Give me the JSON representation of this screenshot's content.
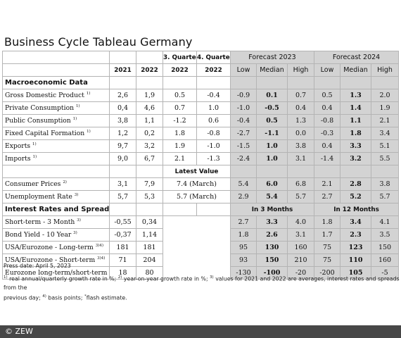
{
  "title": "Business Cycle Tableau Germany",
  "header": {
    "quarter3": "3. Quarter",
    "quarter4": "4. Quarter",
    "forecast2023": "Forecast 2023",
    "forecast2024": "Forecast 2024",
    "years": [
      "2021",
      "2022",
      "2022",
      "2022"
    ],
    "sub": [
      "Low",
      "Median",
      "High",
      "Low",
      "Median",
      "High"
    ]
  },
  "sections": {
    "macro": "Macroeconomic Data",
    "latest": "Latest Value",
    "rates": "Interest Rates and Spreads",
    "in3": "In 3 Months",
    "in12": "In 12 Months"
  },
  "macro_rows": [
    {
      "label": "Gross Domestic Product",
      "fn": "1)",
      "vals": [
        "2,6",
        "1,9",
        "0.5",
        "-0.4",
        "-0.9",
        "0.1",
        "0.7",
        "0.5",
        "1.3",
        "2.0"
      ]
    },
    {
      "label": "Private Consumption",
      "fn": "1)",
      "vals": [
        "0,4",
        "4,6",
        "0.7",
        "1.0",
        "-1.0",
        "-0.5",
        "0.4",
        "0.4",
        "1.4",
        "1.9"
      ]
    },
    {
      "label": "Public Consumption",
      "fn": "1)",
      "vals": [
        "3,8",
        "1,1",
        "-1.2",
        "0.6",
        "-0.4",
        "0.5",
        "1.3",
        "-0.8",
        "1.1",
        "2.1"
      ]
    },
    {
      "label": "Fixed Capital Formation",
      "fn": "1)",
      "vals": [
        "1,2",
        "0,2",
        "1.8",
        "-0.8",
        "-2.7",
        "-1.1",
        "0.0",
        "-0.3",
        "1.8",
        "3.4"
      ]
    },
    {
      "label": "Exports",
      "fn": "1)",
      "vals": [
        "9,7",
        "3,2",
        "1.9",
        "-1.0",
        "-1.5",
        "1.0",
        "3.8",
        "0.4",
        "3.3",
        "5.1"
      ]
    },
    {
      "label": "Imports",
      "fn": "1)",
      "vals": [
        "9,0",
        "6,7",
        "2.1",
        "-1.3",
        "-2.4",
        "1.0",
        "3.1",
        "-1.4",
        "3.2",
        "5.5"
      ]
    }
  ],
  "latest_rows": [
    {
      "label": "Consumer Prices",
      "fn": "2)",
      "v2021": "3,1",
      "v2022": "7,9",
      "latest": "7.4 (March)",
      "vals": [
        "5.4",
        "6.0",
        "6.8",
        "2.1",
        "2.8",
        "3.8"
      ]
    },
    {
      "label": "Unemployment Rate",
      "fn": "3)",
      "v2021": "5,7",
      "v2022": "5,3",
      "latest": "5.7 (March)",
      "vals": [
        "2.9",
        "5.4",
        "5.7",
        "2.7",
        "5.2",
        "5.7"
      ]
    }
  ],
  "rate_rows": [
    {
      "label": "Short-term - 3 Month",
      "fn": "3)",
      "v2021": "-0,55",
      "v2022": "0,34",
      "vals": [
        "2.7",
        "3.3",
        "4.0",
        "1.8",
        "3.4",
        "4.1"
      ]
    },
    {
      "label": "Bond Yield - 10 Year",
      "fn": "3)",
      "v2021": "-0,37",
      "v2022": "1,14",
      "vals": [
        "1.8",
        "2.6",
        "3.1",
        "1.7",
        "2.3",
        "3.5"
      ]
    },
    {
      "label": "USA/Eurozone - Long-term",
      "fn": "3)4)",
      "v2021": "181",
      "v2022": "181",
      "vals": [
        "95",
        "130",
        "160",
        "75",
        "123",
        "150"
      ]
    },
    {
      "label": "USA/Eurozone - Short-term",
      "fn": "3)4)",
      "v2021": "71",
      "v2022": "204",
      "vals": [
        "93",
        "150",
        "210",
        "75",
        "110",
        "160"
      ]
    },
    {
      "label": "Eurozone long-term/short-term",
      "fn": "3)",
      "v2021": "18",
      "v2022": "80",
      "vals": [
        "-130",
        "-100",
        "-20",
        "-200",
        "105",
        "-5"
      ]
    }
  ],
  "notes": {
    "press_date": "Press date: April 5, 2023",
    "fn1_sup": "1)",
    "fn1": " real annual/quarterly growth rate in %; ",
    "fn2_sup": "2)",
    "fn2": " year-on-year growth rate in %; ",
    "fn3_sup": "3)",
    "fn3": " values for 2021 and 2022 are averages, interest rates and spreads from the",
    "line2a": "previous day; ",
    "fn4_sup": "4)",
    "fn4": " basis points; ",
    "fn5_sup": "*",
    "fn5": "flash estimate."
  },
  "footer": "© ZEW"
}
